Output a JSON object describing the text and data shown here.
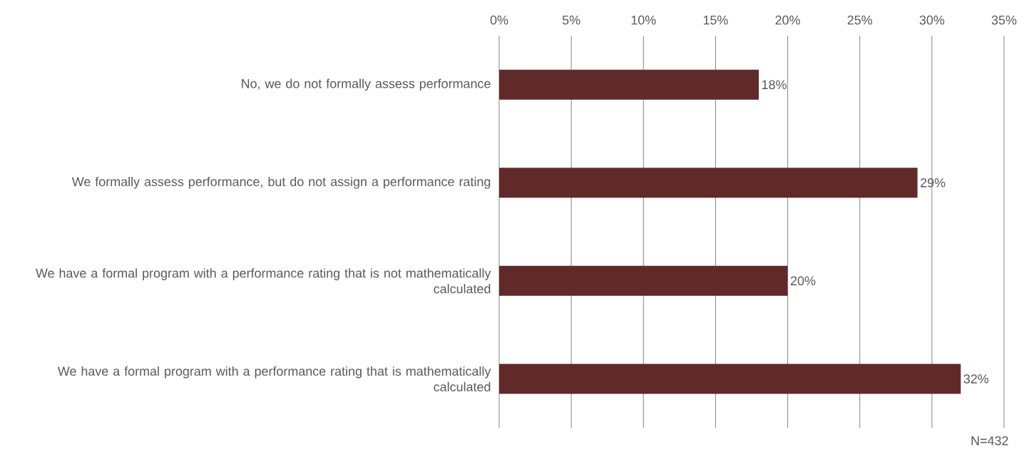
{
  "chart_data": {
    "type": "bar",
    "orientation": "horizontal",
    "categories": [
      "No, we do not formally assess performance",
      "We formally assess performance, but do not assign a performance rating",
      "We have a formal program with a performance rating that is not mathematically calculated",
      "We have a formal program with a performance rating that is mathematically calculated"
    ],
    "values": [
      18,
      29,
      20,
      32
    ],
    "value_labels": [
      "18%",
      "29%",
      "20%",
      "32%"
    ],
    "color": "#612a2a",
    "xlim": [
      0,
      35
    ],
    "xticks": [
      {
        "value": 0,
        "label": "0%"
      },
      {
        "value": 5,
        "label": "5%"
      },
      {
        "value": 10,
        "label": "10%"
      },
      {
        "value": 15,
        "label": "15%"
      },
      {
        "value": 20,
        "label": "20%"
      },
      {
        "value": 25,
        "label": "25%"
      },
      {
        "value": 30,
        "label": "30%"
      },
      {
        "value": 35,
        "label": "35%"
      }
    ],
    "grid": "x",
    "annotations": [
      "N=432"
    ]
  }
}
